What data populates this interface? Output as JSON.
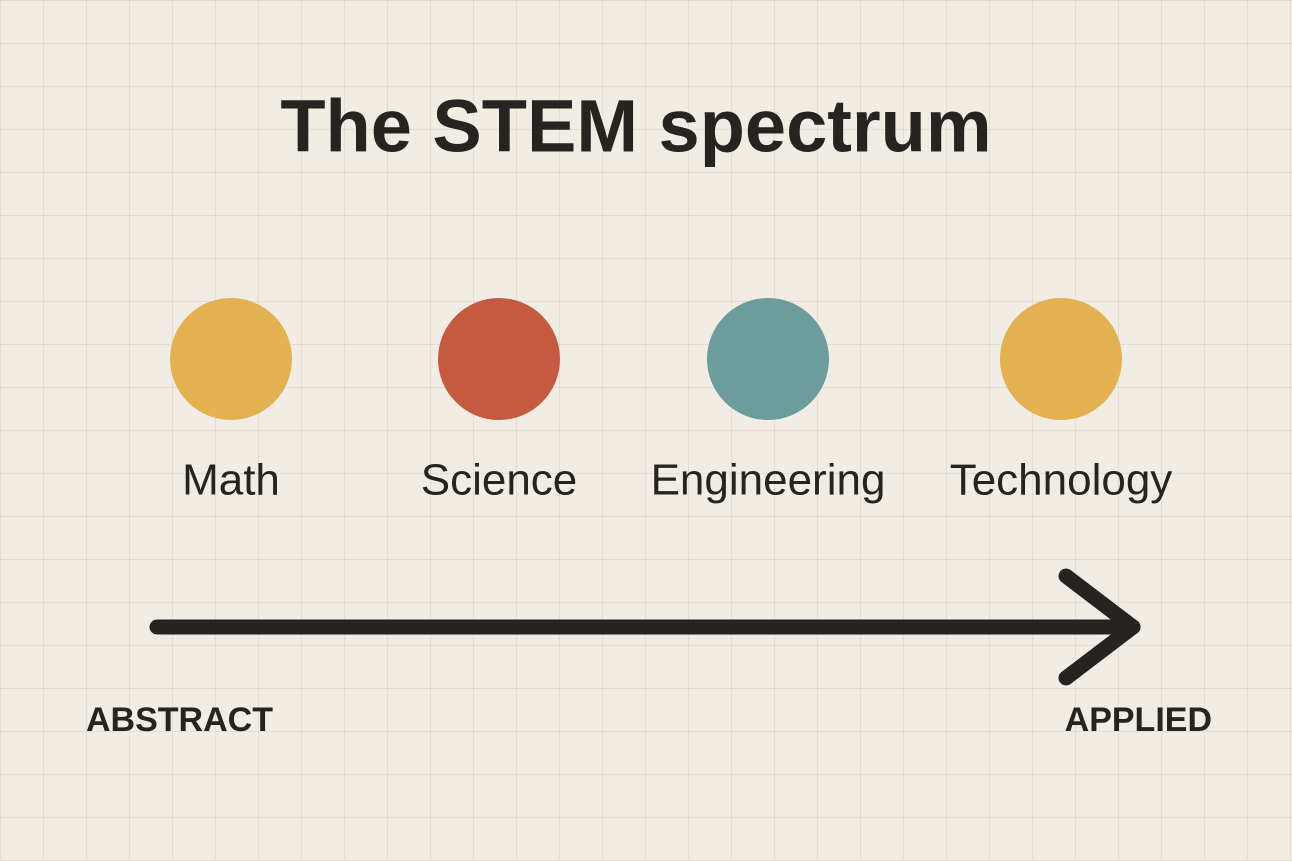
{
  "title": "The STEM spectrum",
  "nodes": [
    {
      "label": "Math",
      "color": "#e4b150"
    },
    {
      "label": "Science",
      "color": "#c65a41"
    },
    {
      "label": "Engineering",
      "color": "#6c9c9c"
    },
    {
      "label": "Technology",
      "color": "#e4b150"
    }
  ],
  "axis": {
    "start": "ABSTRACT",
    "end": "APPLIED"
  }
}
